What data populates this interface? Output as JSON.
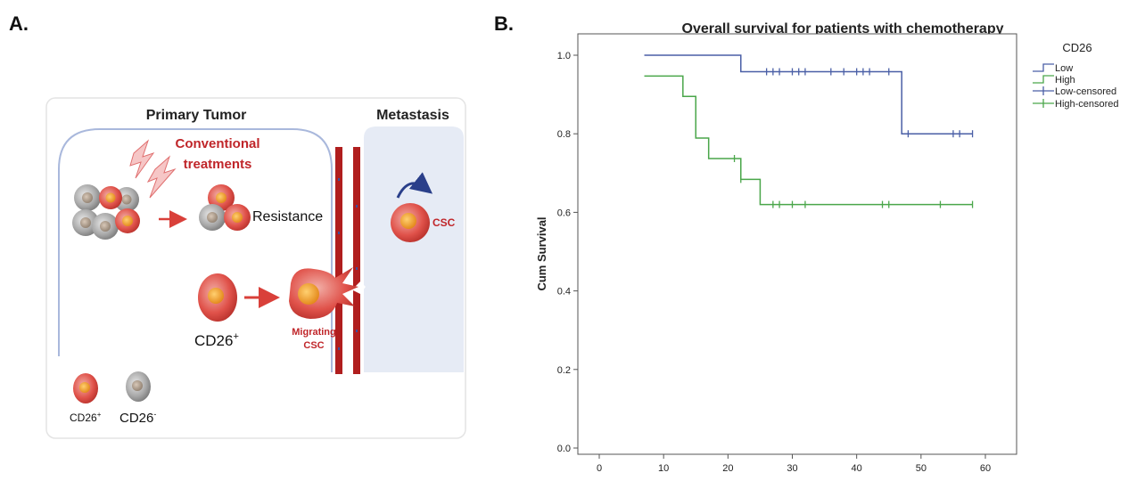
{
  "panel_a": {
    "label": "A.",
    "primary_tumor": "Primary Tumor",
    "metastasis": "Metastasis",
    "conventional_line1": "Conventional",
    "conventional_line2": "treatments",
    "resistance": "Resistance",
    "csc": "CSC",
    "cd26_pos_base": "CD26",
    "cd26_pos_sup": "+",
    "migrating_line1": "Migrating",
    "migrating_line2": "CSC",
    "legend_pos_base": "CD26",
    "legend_pos_sup": "+",
    "legend_neg_base": "CD26",
    "legend_neg_sup": "-",
    "colors": {
      "cell_red": "#d9403a",
      "cell_core": "#f0a020",
      "cell_gray": "#9a9a9a",
      "vessel": "#b01e1e",
      "metastasis_bg": "#e6ebf5",
      "tumor_line": "#a9b8dc"
    }
  },
  "panel_b": {
    "label": "B."
  },
  "chart_data": {
    "type": "line",
    "title": "Overall survival for patients with chemotherapy",
    "xlabel": "",
    "ylabel": "Cum Survival",
    "xlim": [
      0,
      60
    ],
    "ylim": [
      0,
      1
    ],
    "xticks": [
      0,
      10,
      20,
      30,
      40,
      50,
      60
    ],
    "yticks": [
      0.0,
      0.2,
      0.4,
      0.6,
      0.8,
      1.0
    ],
    "ytick_labels": [
      "0.0",
      "0.2",
      "0.4",
      "0.6",
      "0.8",
      "1.0"
    ],
    "grid": false,
    "legend_title": "CD26",
    "legend_position": "top-right",
    "series": [
      {
        "name": "Low",
        "color": "#4a5fa6",
        "steps": [
          [
            7,
            1.0
          ],
          [
            22,
            0.958
          ],
          [
            47,
            0.8
          ],
          [
            58,
            0.8
          ]
        ],
        "censored_name": "Low-censored",
        "censored": [
          26,
          27,
          28,
          30,
          31,
          32,
          36,
          38,
          40,
          41,
          42,
          45,
          48,
          55,
          56,
          58
        ]
      },
      {
        "name": "High",
        "color": "#4aa64a",
        "steps": [
          [
            7,
            0.947
          ],
          [
            13,
            0.895
          ],
          [
            15,
            0.789
          ],
          [
            17,
            0.737
          ],
          [
            22,
            0.684
          ],
          [
            25,
            0.62
          ],
          [
            58,
            0.62
          ]
        ],
        "censored_name": "High-censored",
        "censored": [
          21,
          22,
          27,
          28,
          30,
          32,
          44,
          45,
          53,
          58
        ]
      }
    ]
  }
}
